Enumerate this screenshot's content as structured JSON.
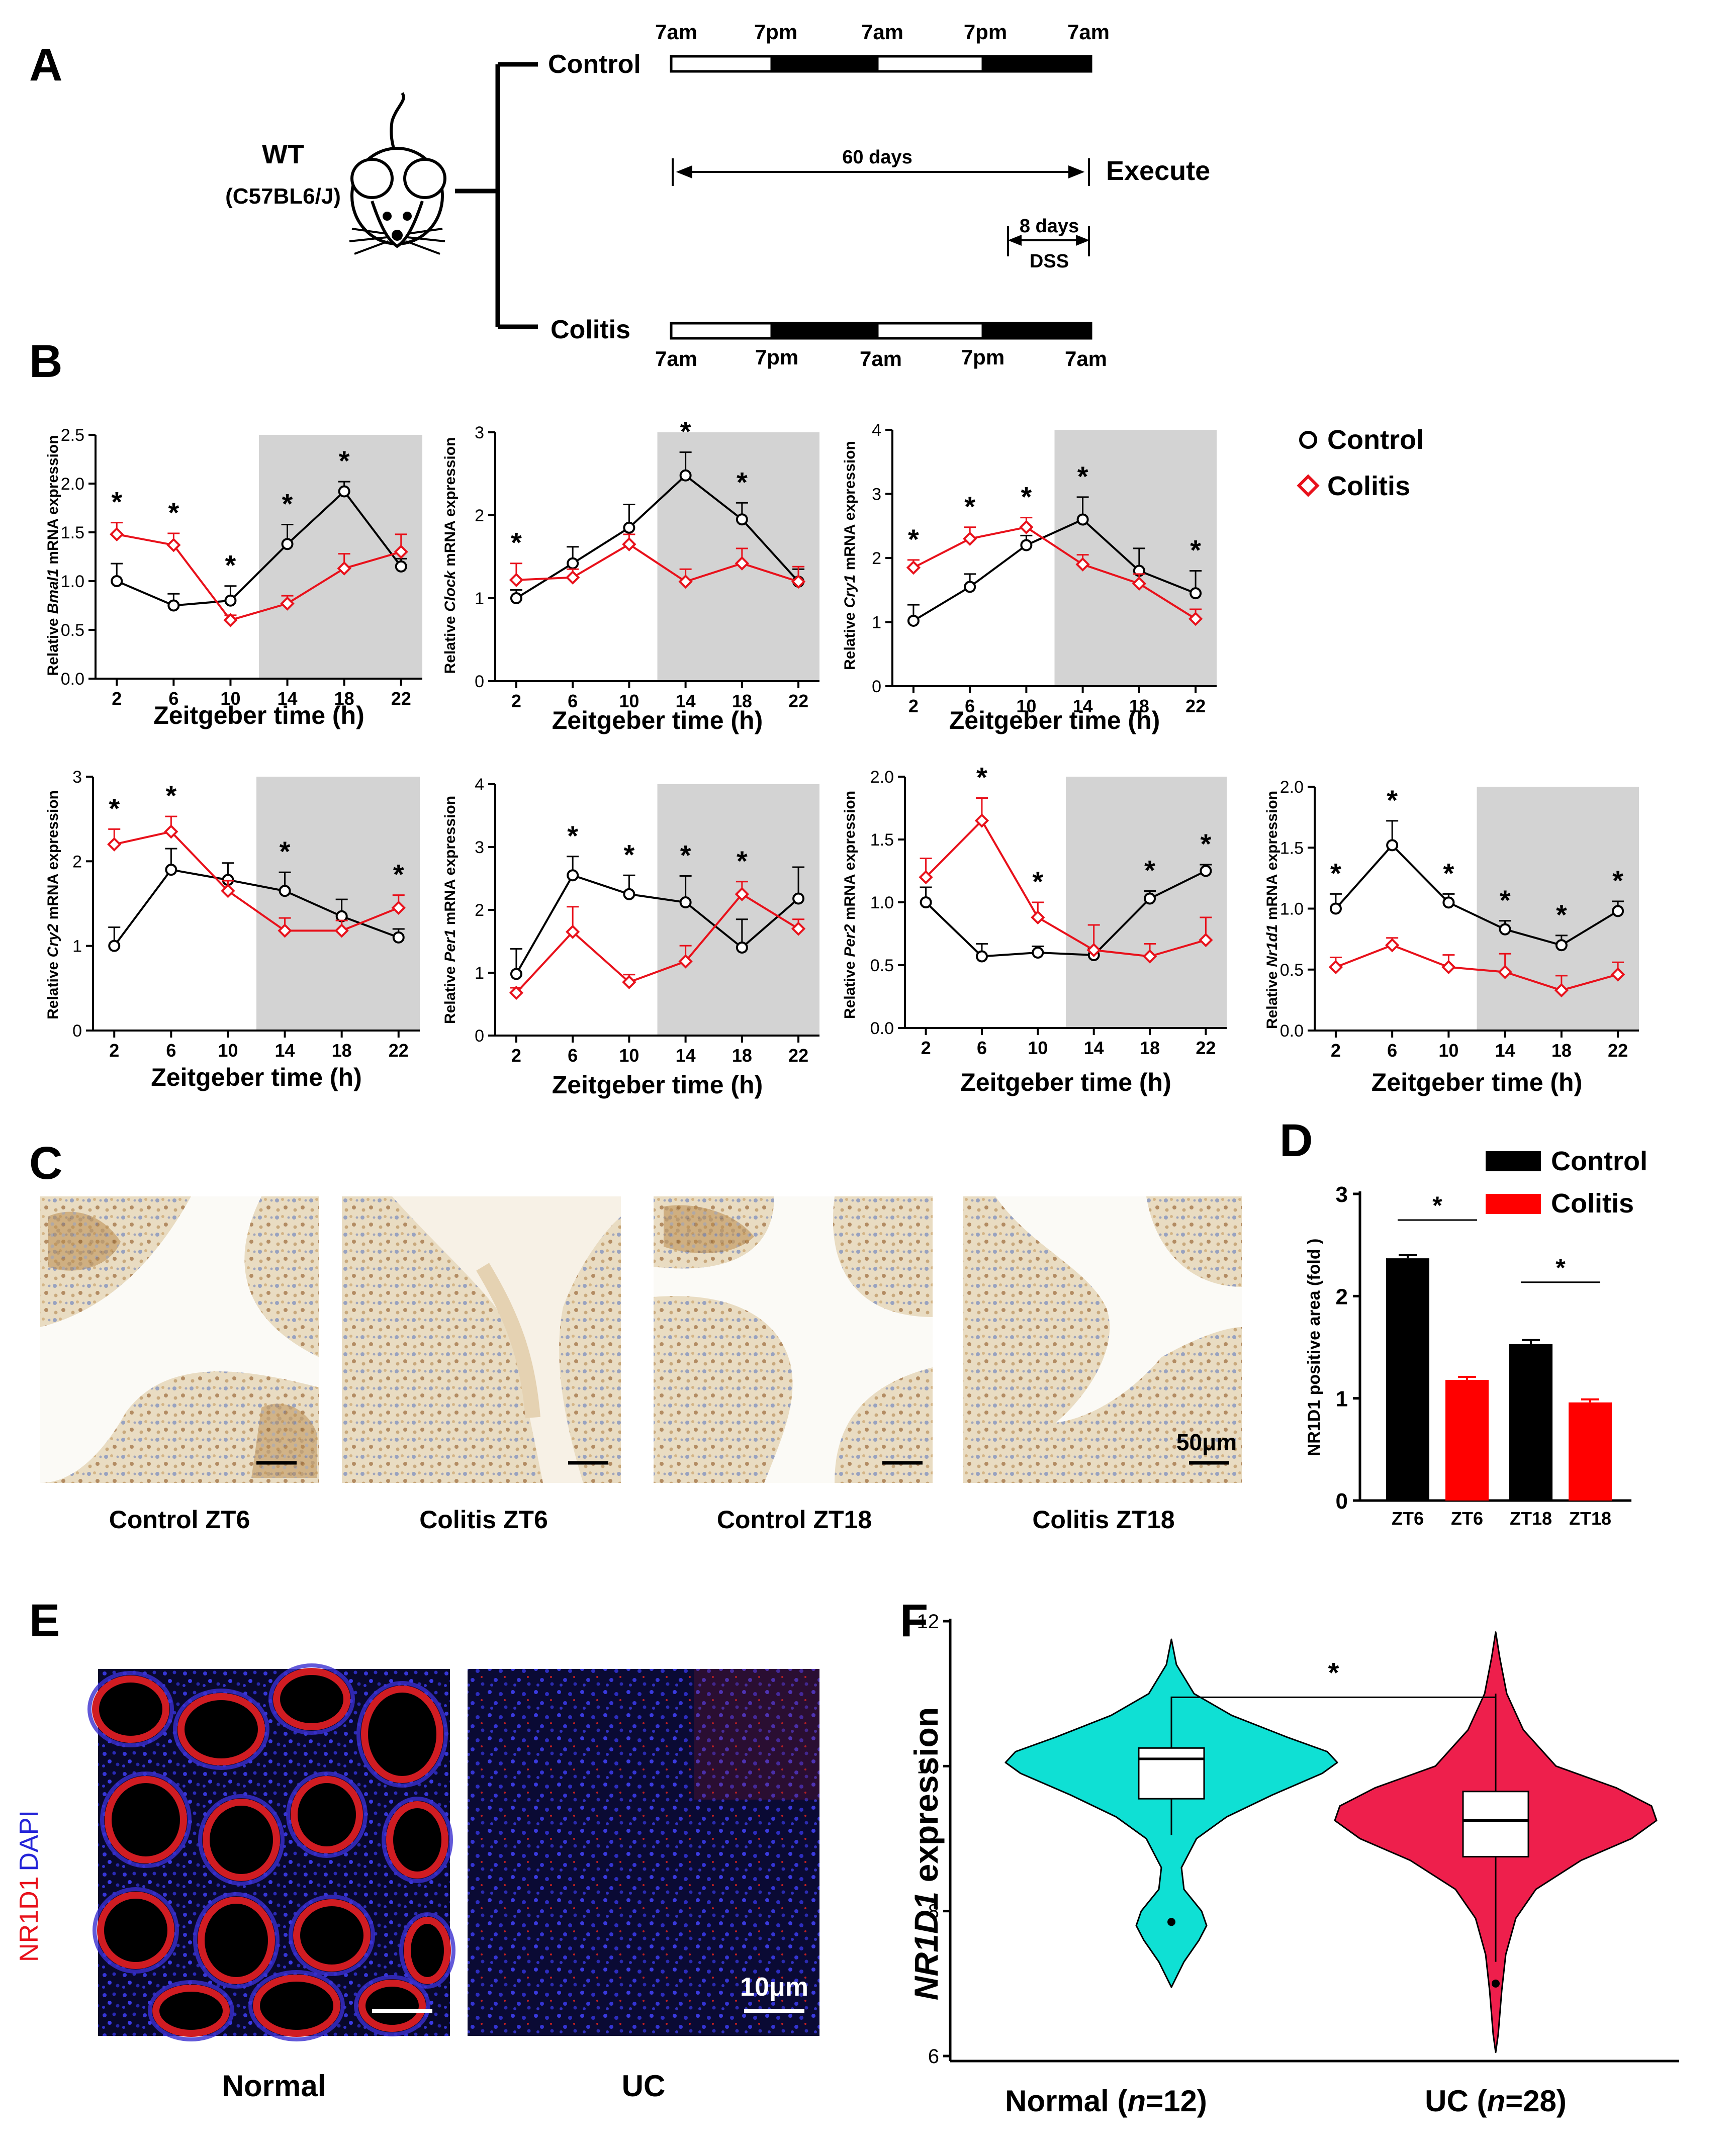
{
  "panelA": {
    "letter": "A",
    "wt": "WT",
    "strain": "(C57BL6/J)",
    "control": "Control",
    "colitis": "Colitis",
    "times": [
      "7am",
      "7pm",
      "7am",
      "7pm",
      "7am"
    ],
    "days60": "60 days",
    "execute": "Execute",
    "days8": "8 days",
    "dss": "DSS"
  },
  "panelB": {
    "letter": "B",
    "xlabel": "Zeitgeber time (h)",
    "legend": {
      "control": "Control",
      "colitis": "Colitis"
    },
    "colors": {
      "control": "#000000",
      "colitis": "#e8111b",
      "shade": "#d3d3d3"
    }
  },
  "chart_data": [
    {
      "type": "line",
      "title": "",
      "gene": "Bmal1",
      "ylabel_pre": "Relative ",
      "ylabel_italic": "Bmal1",
      "ylabel_post": " mRNA expression",
      "x": [
        2,
        6,
        10,
        14,
        18,
        22
      ],
      "ylim": [
        0,
        2.5
      ],
      "yticks": [
        "0.0",
        "0.5",
        "1.0",
        "1.5",
        "2.0",
        "2.5"
      ],
      "series": [
        {
          "name": "Control",
          "values": [
            1.0,
            0.75,
            0.8,
            1.38,
            1.92,
            1.15
          ],
          "err": [
            0.18,
            0.12,
            0.15,
            0.2,
            0.1,
            0.08
          ]
        },
        {
          "name": "Colitis",
          "values": [
            1.48,
            1.37,
            0.6,
            0.77,
            1.13,
            1.3
          ],
          "err": [
            0.12,
            0.12,
            0.05,
            0.08,
            0.15,
            0.18
          ]
        }
      ],
      "stars": [
        "*",
        "*",
        "*",
        "*",
        "*",
        ""
      ]
    },
    {
      "type": "line",
      "title": "",
      "gene": "Clock",
      "ylabel_pre": "Relative ",
      "ylabel_italic": "Clock",
      "ylabel_post": " mRNA expression",
      "x": [
        2,
        6,
        10,
        14,
        18,
        22
      ],
      "ylim": [
        0,
        3
      ],
      "yticks": [
        "0",
        "1",
        "2",
        "3"
      ],
      "series": [
        {
          "name": "Control",
          "values": [
            1.0,
            1.42,
            1.85,
            2.48,
            1.95,
            1.2
          ],
          "err": [
            0.1,
            0.2,
            0.28,
            0.28,
            0.2,
            0.15
          ]
        },
        {
          "name": "Colitis",
          "values": [
            1.22,
            1.25,
            1.65,
            1.2,
            1.42,
            1.2
          ],
          "err": [
            0.2,
            0.1,
            0.12,
            0.15,
            0.18,
            0.18
          ]
        }
      ],
      "stars": [
        "*",
        "",
        "",
        "*",
        "*",
        ""
      ]
    },
    {
      "type": "line",
      "title": "",
      "gene": "Cry1",
      "ylabel_pre": "Relative ",
      "ylabel_italic": "Cry1",
      "ylabel_post": " mRNA expression",
      "x": [
        2,
        6,
        10,
        14,
        18,
        22
      ],
      "ylim": [
        0,
        4
      ],
      "yticks": [
        "0",
        "1",
        "2",
        "3",
        "4"
      ],
      "series": [
        {
          "name": "Control",
          "values": [
            1.02,
            1.55,
            2.2,
            2.6,
            1.8,
            1.45
          ],
          "err": [
            0.25,
            0.2,
            0.15,
            0.35,
            0.35,
            0.35
          ]
        },
        {
          "name": "Colitis",
          "values": [
            1.85,
            2.3,
            2.48,
            1.9,
            1.6,
            1.05
          ],
          "err": [
            0.12,
            0.18,
            0.15,
            0.15,
            0.15,
            0.15
          ]
        }
      ],
      "stars": [
        "*",
        "*",
        "*",
        "*",
        "",
        "*"
      ]
    },
    {
      "type": "line",
      "title": "",
      "gene": "Cry2",
      "ylabel_pre": "Relative ",
      "ylabel_italic": "Cry2",
      "ylabel_post": " mRNA expression",
      "x": [
        2,
        6,
        10,
        14,
        18,
        22
      ],
      "ylim": [
        0,
        3
      ],
      "yticks": [
        "0",
        "1",
        "2",
        "3"
      ],
      "series": [
        {
          "name": "Control",
          "values": [
            1.0,
            1.9,
            1.78,
            1.65,
            1.35,
            1.1
          ],
          "err": [
            0.22,
            0.25,
            0.2,
            0.22,
            0.2,
            0.1
          ]
        },
        {
          "name": "Colitis",
          "values": [
            2.2,
            2.35,
            1.65,
            1.18,
            1.18,
            1.45
          ],
          "err": [
            0.18,
            0.18,
            0.12,
            0.15,
            0.12,
            0.15
          ]
        }
      ],
      "stars": [
        "*",
        "*",
        "",
        "*",
        "",
        "*"
      ]
    },
    {
      "type": "line",
      "title": "",
      "gene": "Per1",
      "ylabel_pre": "Relative ",
      "ylabel_italic": "Per1",
      "ylabel_post": " mRNA expression",
      "x": [
        2,
        6,
        10,
        14,
        18,
        22
      ],
      "ylim": [
        0,
        4
      ],
      "yticks": [
        "0",
        "1",
        "2",
        "3",
        "4"
      ],
      "series": [
        {
          "name": "Control",
          "values": [
            0.98,
            2.55,
            2.25,
            2.12,
            1.4,
            2.18
          ],
          "err": [
            0.4,
            0.3,
            0.3,
            0.42,
            0.45,
            0.5
          ]
        },
        {
          "name": "Colitis",
          "values": [
            0.68,
            1.65,
            0.85,
            1.18,
            2.25,
            1.7
          ],
          "err": [
            0.08,
            0.4,
            0.12,
            0.25,
            0.2,
            0.15
          ]
        }
      ],
      "stars": [
        "",
        "*",
        "*",
        "*",
        "*",
        ""
      ]
    },
    {
      "type": "line",
      "title": "",
      "gene": "Per2",
      "ylabel_pre": "Relative ",
      "ylabel_italic": "Per2",
      "ylabel_post": " mRNA expression",
      "x": [
        2,
        6,
        10,
        14,
        18,
        22
      ],
      "ylim": [
        0,
        2.0
      ],
      "yticks": [
        "0.0",
        "0.5",
        "1.0",
        "1.5",
        "2.0"
      ],
      "series": [
        {
          "name": "Control",
          "values": [
            1.0,
            0.57,
            0.6,
            0.58,
            1.03,
            1.25
          ],
          "err": [
            0.12,
            0.1,
            0.05,
            0.05,
            0.06,
            0.05
          ]
        },
        {
          "name": "Colitis",
          "values": [
            1.2,
            1.65,
            0.88,
            0.62,
            0.57,
            0.7
          ],
          "err": [
            0.15,
            0.18,
            0.12,
            0.2,
            0.1,
            0.18
          ]
        }
      ],
      "stars": [
        "",
        "*",
        "*",
        "",
        "*",
        "*"
      ]
    },
    {
      "type": "line",
      "title": "",
      "gene": "Nr1d1",
      "ylabel_pre": "Relative ",
      "ylabel_italic": "Nr1d1",
      "ylabel_post": " mRNA expression",
      "x": [
        2,
        6,
        10,
        14,
        18,
        22
      ],
      "ylim": [
        0,
        2.0
      ],
      "yticks": [
        "0.0",
        "0.5",
        "1.0",
        "1.5",
        "2.0"
      ],
      "series": [
        {
          "name": "Control",
          "values": [
            1.0,
            1.52,
            1.05,
            0.83,
            0.7,
            0.98
          ],
          "err": [
            0.12,
            0.2,
            0.07,
            0.07,
            0.08,
            0.08
          ]
        },
        {
          "name": "Colitis",
          "values": [
            0.52,
            0.7,
            0.52,
            0.48,
            0.33,
            0.46
          ],
          "err": [
            0.08,
            0.06,
            0.1,
            0.15,
            0.12,
            0.1
          ]
        }
      ],
      "stars": [
        "*",
        "*",
        "*",
        "*",
        "*",
        "*"
      ]
    },
    {
      "type": "bar",
      "title": "",
      "ylabel": "NR1D1 positive area (fold )",
      "categories": [
        "ZT6",
        "ZT6",
        "ZT18",
        "ZT18"
      ],
      "values": [
        2.37,
        1.18,
        1.53,
        0.96
      ],
      "err": [
        0.03,
        0.03,
        0.04,
        0.03
      ],
      "groups": [
        "Control",
        "Colitis",
        "Control",
        "Colitis"
      ],
      "ylim": [
        0,
        3
      ],
      "yticks": [
        "0",
        "1",
        "2",
        "3"
      ],
      "legend": [
        "Control",
        "Colitis"
      ],
      "sig": [
        "*",
        "*"
      ]
    },
    {
      "type": "violin",
      "title": "",
      "ylabel_italic": "NR1D1",
      "ylabel_post": " expression",
      "categories": [
        "Normal",
        "UC"
      ],
      "n": [
        "12",
        "28"
      ],
      "ylim": [
        6,
        12
      ],
      "yticks": [
        "6",
        "8",
        "10",
        "12"
      ],
      "box": [
        {
          "median": 10.1,
          "q1": 9.55,
          "q3": 10.25,
          "whisker_low": 9.05,
          "whisker_high": 10.9,
          "outlier": 7.85
        },
        {
          "median": 9.25,
          "q1": 8.75,
          "q3": 9.65,
          "whisker_low": 7.3,
          "whisker_high": 11.0,
          "outlier": 7.0
        }
      ],
      "colors": [
        "#0fe0d4",
        "#ee1f4c"
      ],
      "sig": "*"
    }
  ],
  "panelC": {
    "letter": "C",
    "labels": [
      "Control ZT6",
      "Colitis ZT6",
      "Control ZT18",
      "Colitis ZT18"
    ],
    "scale": "50μm"
  },
  "panelD": {
    "letter": "D"
  },
  "panelE": {
    "letter": "E",
    "stain1": "NR1D1",
    "stain2": "DAPI",
    "labels": [
      "Normal",
      "UC"
    ],
    "scale": "10μm"
  },
  "panelF": {
    "letter": "F",
    "xlabels": [
      {
        "pre": "Normal (",
        "n": "n",
        "post": "=12)"
      },
      {
        "pre": "UC (",
        "n": "n",
        "post": "=28)"
      }
    ]
  }
}
